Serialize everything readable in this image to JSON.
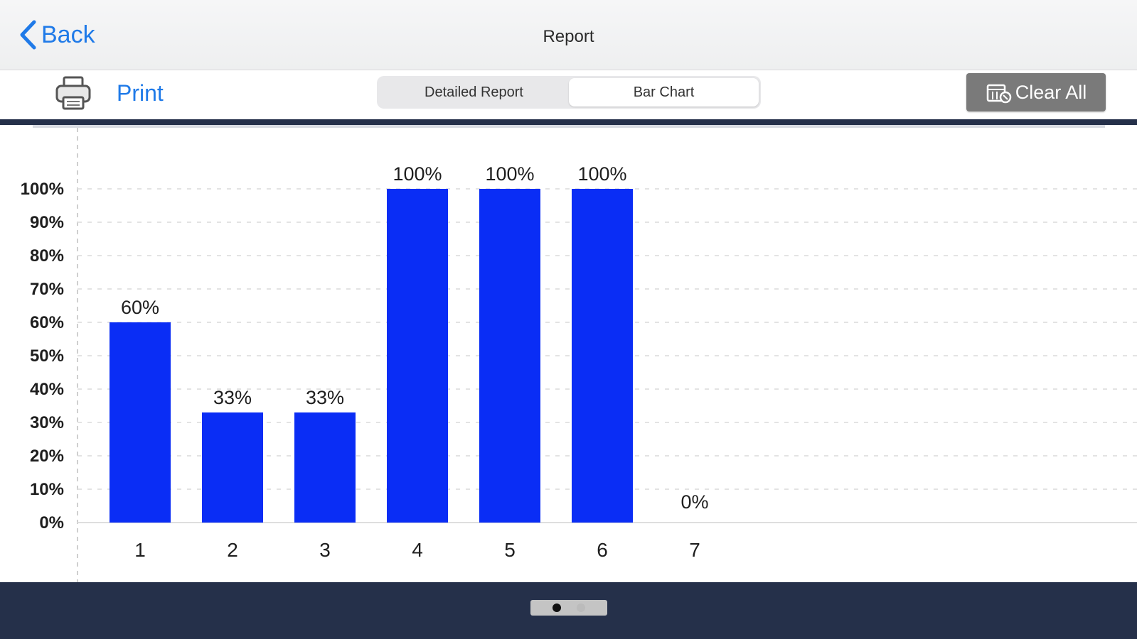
{
  "navbar": {
    "back_label": "Back",
    "title": "Report"
  },
  "toolbar": {
    "print_label": "Print",
    "segments": [
      {
        "label": "Detailed Report",
        "selected": false
      },
      {
        "label": "Bar Chart",
        "selected": true
      }
    ],
    "clear_label": "Clear All"
  },
  "pager": {
    "pages": 2,
    "current": 1
  },
  "colors": {
    "accent": "#1f7ae8",
    "bar": "#0a2df5",
    "footer": "#25304a",
    "clear_button": "#7a7a7a"
  },
  "icons": {
    "back": "chevron-left-icon",
    "print": "printer-icon",
    "clear": "clear-all-icon"
  },
  "chart_data": {
    "type": "bar",
    "categories": [
      "1",
      "2",
      "3",
      "4",
      "5",
      "6",
      "7"
    ],
    "values": [
      60,
      33,
      33,
      100,
      100,
      100,
      0
    ],
    "data_labels": [
      "60%",
      "33%",
      "33%",
      "100%",
      "100%",
      "100%",
      "0%"
    ],
    "y_ticks": [
      "0%",
      "10%",
      "20%",
      "30%",
      "40%",
      "50%",
      "60%",
      "70%",
      "80%",
      "90%",
      "100%"
    ],
    "ylim": [
      0,
      100
    ],
    "grid": true,
    "title": "",
    "xlabel": "",
    "ylabel": ""
  }
}
